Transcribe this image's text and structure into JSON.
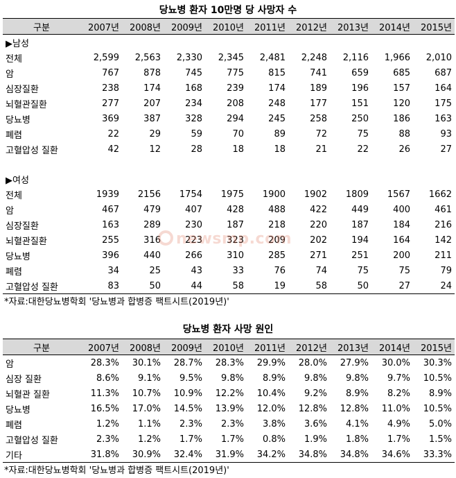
{
  "table1": {
    "title": "당뇨병 환자 10만명 당 사망자 수",
    "header_label": "구분",
    "years": [
      "2007년",
      "2008년",
      "2009년",
      "2010년",
      "2011년",
      "2012년",
      "2013년",
      "2014년",
      "2015년"
    ],
    "male": {
      "section_label": "▶남성",
      "rows": [
        {
          "label": "전체",
          "values": [
            "2,599",
            "2,563",
            "2,330",
            "2,345",
            "2,481",
            "2,248",
            "2,116",
            "1,966",
            "2,010"
          ]
        },
        {
          "label": "암",
          "values": [
            "767",
            "878",
            "745",
            "775",
            "815",
            "741",
            "659",
            "685",
            "687"
          ]
        },
        {
          "label": "심장질환",
          "values": [
            "238",
            "174",
            "168",
            "239",
            "174",
            "189",
            "196",
            "157",
            "164"
          ]
        },
        {
          "label": "뇌혈관질환",
          "values": [
            "277",
            "207",
            "234",
            "208",
            "248",
            "177",
            "151",
            "120",
            "175"
          ]
        },
        {
          "label": "당뇨병",
          "values": [
            "369",
            "387",
            "328",
            "294",
            "245",
            "258",
            "250",
            "186",
            "163"
          ]
        },
        {
          "label": "폐렴",
          "values": [
            "22",
            "29",
            "59",
            "70",
            "89",
            "72",
            "75",
            "88",
            "93"
          ]
        },
        {
          "label": "고혈압성 질환",
          "values": [
            "42",
            "12",
            "28",
            "18",
            "18",
            "21",
            "22",
            "26",
            "27"
          ]
        }
      ]
    },
    "female": {
      "section_label": "▶여성",
      "rows": [
        {
          "label": "전체",
          "values": [
            "1939",
            "2156",
            "1754",
            "1975",
            "1900",
            "1902",
            "1809",
            "1567",
            "1662"
          ]
        },
        {
          "label": "암",
          "values": [
            "467",
            "479",
            "407",
            "428",
            "488",
            "422",
            "449",
            "400",
            "461"
          ]
        },
        {
          "label": "심장질환",
          "values": [
            "163",
            "289",
            "230",
            "187",
            "218",
            "220",
            "187",
            "184",
            "216"
          ]
        },
        {
          "label": "뇌혈관질환",
          "values": [
            "255",
            "316",
            "223",
            "323",
            "209",
            "202",
            "194",
            "164",
            "142"
          ]
        },
        {
          "label": "당뇨병",
          "values": [
            "396",
            "440",
            "266",
            "310",
            "285",
            "271",
            "251",
            "200",
            "211"
          ]
        },
        {
          "label": "폐렴",
          "values": [
            "34",
            "25",
            "43",
            "33",
            "76",
            "74",
            "75",
            "75",
            "79"
          ]
        },
        {
          "label": "고혈압성 질환",
          "values": [
            "83",
            "50",
            "44",
            "58",
            "19",
            "58",
            "50",
            "27",
            "24"
          ]
        }
      ]
    },
    "source": "*자료:대한당뇨병학회 '당뇨병과 합병증 팩트시트(2019년)'"
  },
  "table2": {
    "title": "당뇨병 환자 사망 원인",
    "header_label": "구분",
    "years": [
      "2007년",
      "2008년",
      "2009년",
      "2010년",
      "2011년",
      "2012년",
      "2013년",
      "2014년",
      "2015년"
    ],
    "rows": [
      {
        "label": "암",
        "values": [
          "28.3%",
          "30.1%",
          "28.7%",
          "28.3%",
          "29.9%",
          "28.0%",
          "27.9%",
          "30.0%",
          "30.3%"
        ]
      },
      {
        "label": "심장 질환",
        "values": [
          "8.6%",
          "9.1%",
          "9.5%",
          "9.8%",
          "8.9%",
          "9.8%",
          "9.8%",
          "9.7%",
          "10.5%"
        ]
      },
      {
        "label": "뇌혈관 질환",
        "values": [
          "11.3%",
          "10.7%",
          "10.9%",
          "12.2%",
          "10.4%",
          "9.2%",
          "8.9%",
          "8.2%",
          "8.9%"
        ]
      },
      {
        "label": "당뇨병",
        "values": [
          "16.5%",
          "17.0%",
          "14.5%",
          "13.9%",
          "12.0%",
          "12.8%",
          "12.8%",
          "11.0%",
          "10.5%"
        ]
      },
      {
        "label": "폐렴",
        "values": [
          "1.2%",
          "1.1%",
          "2.3%",
          "2.3%",
          "3.8%",
          "3.6%",
          "4.1%",
          "4.9%",
          "5.0%"
        ]
      },
      {
        "label": "고혈압성 질환",
        "values": [
          "2.3%",
          "1.2%",
          "1.7%",
          "1.7%",
          "0.8%",
          "1.9%",
          "1.8%",
          "1.7%",
          "1.5%"
        ]
      },
      {
        "label": "기타",
        "values": [
          "31.8%",
          "30.9%",
          "32.4%",
          "31.9%",
          "34.2%",
          "34.8%",
          "34.8%",
          "34.6%",
          "33.3%"
        ]
      }
    ],
    "source": "*자료:대한당뇨병학회 '당뇨병과 합병증 팩트시트(2019년)'"
  },
  "watermark": {
    "text": "newsmp.com",
    "color": "#e07a5f"
  }
}
